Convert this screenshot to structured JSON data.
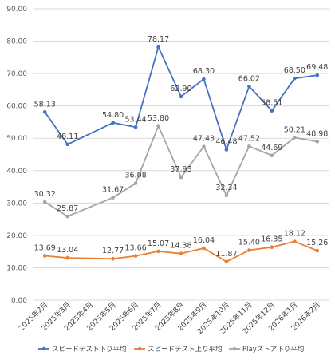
{
  "chart_data": {
    "type": "line",
    "title": "",
    "xlabel": "",
    "ylabel": "",
    "ylim": [
      0,
      90
    ],
    "yticks": [
      "0.00",
      "10.00",
      "20.00",
      "30.00",
      "40.00",
      "50.00",
      "60.00",
      "70.00",
      "80.00",
      "90.00"
    ],
    "grid": true,
    "legend_position": "bottom",
    "categories": [
      "2025年2月",
      "2025年3月",
      "2025年4月",
      "2025年5月",
      "2025年6月",
      "2025年7月",
      "2025年8月",
      "2025年9月",
      "2025年10月",
      "2025年11月",
      "2025年12月",
      "2026年1月",
      "2026年2月"
    ],
    "series": [
      {
        "name": "スピードテスト下り平均",
        "color": "#4472c4",
        "values": [
          58.13,
          48.11,
          null,
          54.8,
          53.44,
          78.17,
          62.9,
          68.3,
          46.48,
          66.02,
          58.51,
          68.5,
          69.48
        ],
        "labels": [
          "58.13",
          "48.11",
          "",
          "54.80",
          "53.44",
          "78.17",
          "62.90",
          "68.30",
          "46.48",
          "66.02",
          "58.51",
          "68.50",
          "69.48"
        ]
      },
      {
        "name": "スピードテスト上り平均",
        "color": "#ed7d31",
        "values": [
          13.69,
          13.04,
          null,
          12.77,
          13.66,
          15.07,
          14.38,
          16.04,
          11.87,
          15.4,
          16.35,
          18.12,
          15.26
        ],
        "labels": [
          "13.69",
          "13.04",
          "",
          "12.77",
          "13.66",
          "15.07",
          "14.38",
          "16.04",
          "11.87",
          "15.40",
          "16.35",
          "18.12",
          "15.26"
        ]
      },
      {
        "name": "Playストア下り平均",
        "color": "#a5a5a5",
        "values": [
          30.32,
          25.87,
          null,
          31.67,
          36.08,
          53.8,
          37.93,
          47.43,
          32.34,
          47.52,
          44.69,
          50.21,
          48.98
        ],
        "labels": [
          "30.32",
          "25.87",
          "",
          "31.67",
          "36.08",
          "53.80",
          "37.93",
          "47.43",
          "32.34",
          "47.52",
          "44.69",
          "50.21",
          "48.98"
        ]
      }
    ]
  }
}
